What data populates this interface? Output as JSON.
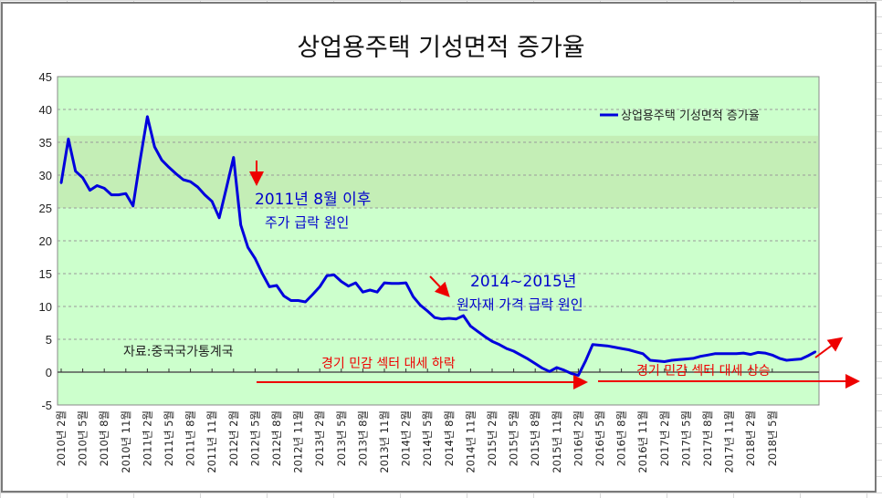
{
  "chart_data": {
    "type": "line",
    "title": "상업용주택 기성면적 증가율",
    "xlabel": "",
    "ylabel": "",
    "ylim": [
      -5,
      45
    ],
    "yticks": [
      45,
      40,
      35,
      30,
      25,
      20,
      15,
      10,
      5,
      0,
      -5
    ],
    "grid": true,
    "legend_position": "top-right",
    "highlight_band": [
      25,
      36
    ],
    "x_tick_labels": [
      "2010년 2월",
      "2010년 5월",
      "2010년 8월",
      "2010년 11월",
      "2011년 2월",
      "2011년 5월",
      "2011년 8월",
      "2011년 11월",
      "2012년 2월",
      "2012년 5월",
      "2012년 8월",
      "2012년 11월",
      "2013년 2월",
      "2013년 5월",
      "2013년 8월",
      "2013년 11월",
      "2014년 2월",
      "2014년 5월",
      "2014년 8월",
      "2014년 11월",
      "2015년 2월",
      "2015년 5월",
      "2015년 8월",
      "2015년 11월",
      "2016년 2월",
      "2016년 5월",
      "2016년 8월",
      "2016년 11월",
      "2017년 2월",
      "2017년 5월",
      "2017년 8월",
      "2017년 11월",
      "2018년 2월",
      "2018년 5월"
    ],
    "series": [
      {
        "name": "상업용주택 기성면적 증가율",
        "color": "#0000dd",
        "values": [
          28.8,
          35.5,
          30.6,
          29.6,
          27.7,
          28.4,
          28.0,
          27.0,
          27.0,
          27.2,
          25.3,
          32.3,
          38.9,
          34.3,
          32.3,
          31.2,
          30.2,
          29.3,
          29.0,
          28.2,
          27.0,
          26.0,
          23.5,
          28.0,
          32.7,
          22.4,
          19.0,
          17.3,
          15.0,
          13.0,
          13.2,
          11.6,
          10.9,
          10.9,
          10.7,
          11.8,
          13.0,
          14.7,
          14.8,
          13.8,
          13.1,
          13.6,
          12.2,
          12.5,
          12.2,
          13.6,
          13.5,
          13.5,
          13.6,
          11.5,
          10.2,
          9.3,
          8.3,
          8.1,
          8.2,
          8.1,
          8.6,
          7.0,
          6.2,
          5.4,
          4.7,
          4.2,
          3.6,
          3.2,
          2.6,
          2.0,
          1.3,
          0.6,
          0.1,
          0.7,
          0.3,
          -0.2,
          -0.5,
          1.7,
          4.2,
          4.1,
          4.0,
          3.8,
          3.6,
          3.4,
          3.1,
          2.8,
          1.8,
          1.7,
          1.6,
          1.8,
          1.9,
          2.0,
          2.1,
          2.4,
          2.6,
          2.8,
          2.8,
          2.8,
          2.8,
          2.9,
          2.7,
          3.0,
          2.9,
          2.6,
          2.1,
          1.8,
          1.9,
          2.0,
          2.5,
          3.1
        ]
      }
    ],
    "annotations": [
      {
        "id": "ann1_line1",
        "text": "2011년 8월 이후"
      },
      {
        "id": "ann1_line2",
        "text": "주가 급락 원인"
      },
      {
        "id": "ann2_line1",
        "text": "2014~2015년"
      },
      {
        "id": "ann2_line2",
        "text": "원자재 가격 급락 원인"
      },
      {
        "id": "ann3",
        "text": "경기 민감 섹터 대세 하락"
      },
      {
        "id": "ann4",
        "text": "경기 민감 섹터 대세 상승"
      },
      {
        "id": "source",
        "text": "자료:중국국가통계국"
      }
    ]
  },
  "colors": {
    "plot_bg": "#ccffcc",
    "band": "#c3ecb4",
    "line": "#0000dd",
    "arrow": "#ee0000"
  }
}
